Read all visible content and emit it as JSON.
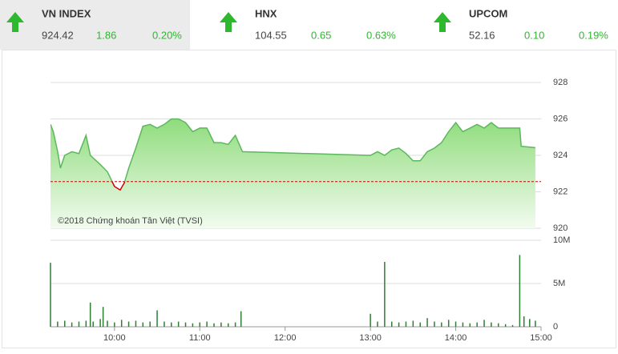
{
  "header": {
    "indices": [
      {
        "name": "VN INDEX",
        "value": "924.42",
        "change": "1.86",
        "percent": "0.20%"
      },
      {
        "name": "HNX",
        "value": "104.55",
        "change": "0.65",
        "percent": "0.63%"
      },
      {
        "name": "UPCOM",
        "value": "52.16",
        "change": "0.10",
        "percent": "0.19%"
      }
    ]
  },
  "chart_data": [
    {
      "type": "area",
      "color": "#5cb85c",
      "reference_color": "#cc0000",
      "reference": 922.56,
      "annotation": "©2018 Chứng khoán Tân Việt (TVSI)",
      "x": [
        "09:15",
        "09:17",
        "09:20",
        "09:22",
        "09:25",
        "09:30",
        "09:35",
        "09:40",
        "09:43",
        "09:50",
        "09:55",
        "10:00",
        "10:04",
        "10:07",
        "10:10",
        "10:15",
        "10:20",
        "10:25",
        "10:30",
        "10:35",
        "10:40",
        "10:45",
        "10:50",
        "10:55",
        "11:00",
        "11:05",
        "11:10",
        "11:15",
        "11:20",
        "11:25",
        "11:30",
        "13:00",
        "13:05",
        "13:10",
        "13:15",
        "13:20",
        "13:25",
        "13:30",
        "13:35",
        "13:40",
        "13:45",
        "13:50",
        "13:55",
        "14:00",
        "14:05",
        "14:10",
        "14:15",
        "14:20",
        "14:25",
        "14:30",
        "14:45",
        "14:46",
        "14:56"
      ],
      "values": [
        925.7,
        925.3,
        924.2,
        923.3,
        924.0,
        924.2,
        924.1,
        925.1,
        924.0,
        923.5,
        923.1,
        922.3,
        922.1,
        922.5,
        923.3,
        924.4,
        925.6,
        925.7,
        925.5,
        925.7,
        926.0,
        926.0,
        925.8,
        925.3,
        925.5,
        925.5,
        924.7,
        924.7,
        924.6,
        925.1,
        924.2,
        924.0,
        924.2,
        924.0,
        924.3,
        924.4,
        924.1,
        923.7,
        923.7,
        924.2,
        924.4,
        924.7,
        925.3,
        925.8,
        925.3,
        925.5,
        925.7,
        925.5,
        925.8,
        925.5,
        925.5,
        924.5,
        924.42
      ],
      "xlim": [
        "09:15",
        "15:00"
      ],
      "ylim": [
        920,
        928
      ],
      "yticks": [
        920,
        922,
        924,
        926,
        928
      ],
      "grid": true
    },
    {
      "type": "bar",
      "color": "#2e7d32",
      "x": [
        "09:15",
        "09:20",
        "09:25",
        "09:30",
        "09:35",
        "09:40",
        "09:43",
        "09:45",
        "09:50",
        "09:52",
        "09:55",
        "10:00",
        "10:05",
        "10:10",
        "10:15",
        "10:20",
        "10:25",
        "10:30",
        "10:35",
        "10:40",
        "10:45",
        "10:50",
        "10:55",
        "11:00",
        "11:05",
        "11:10",
        "11:15",
        "11:20",
        "11:25",
        "11:29",
        "13:00",
        "13:05",
        "13:10",
        "13:15",
        "13:20",
        "13:25",
        "13:30",
        "13:35",
        "13:40",
        "13:45",
        "13:50",
        "13:55",
        "14:00",
        "14:05",
        "14:10",
        "14:15",
        "14:20",
        "14:25",
        "14:30",
        "14:35",
        "14:40",
        "14:45",
        "14:48",
        "14:52",
        "14:56"
      ],
      "values": [
        7400000,
        600000,
        700000,
        500000,
        600000,
        700000,
        2800000,
        600000,
        900000,
        2300000,
        700000,
        500000,
        800000,
        600000,
        700000,
        500000,
        600000,
        1900000,
        600000,
        500000,
        600000,
        500000,
        400000,
        500000,
        600000,
        400000,
        500000,
        400000,
        500000,
        1800000,
        1500000,
        600000,
        7500000,
        600000,
        500000,
        600000,
        700000,
        500000,
        1000000,
        600000,
        500000,
        800000,
        600000,
        500000,
        400000,
        500000,
        800000,
        500000,
        400000,
        300000,
        200000,
        8300000,
        1200000,
        900000,
        700000
      ],
      "xlim": [
        "09:15",
        "15:00"
      ],
      "xticks": [
        "10:00",
        "11:00",
        "12:00",
        "13:00",
        "14:00",
        "15:00"
      ],
      "ylim": [
        0,
        10000000
      ],
      "yticks": [
        0,
        {
          "value": 5000000,
          "label": "5M"
        },
        {
          "value": 10000000,
          "label": "10M"
        }
      ],
      "grid": true
    }
  ]
}
